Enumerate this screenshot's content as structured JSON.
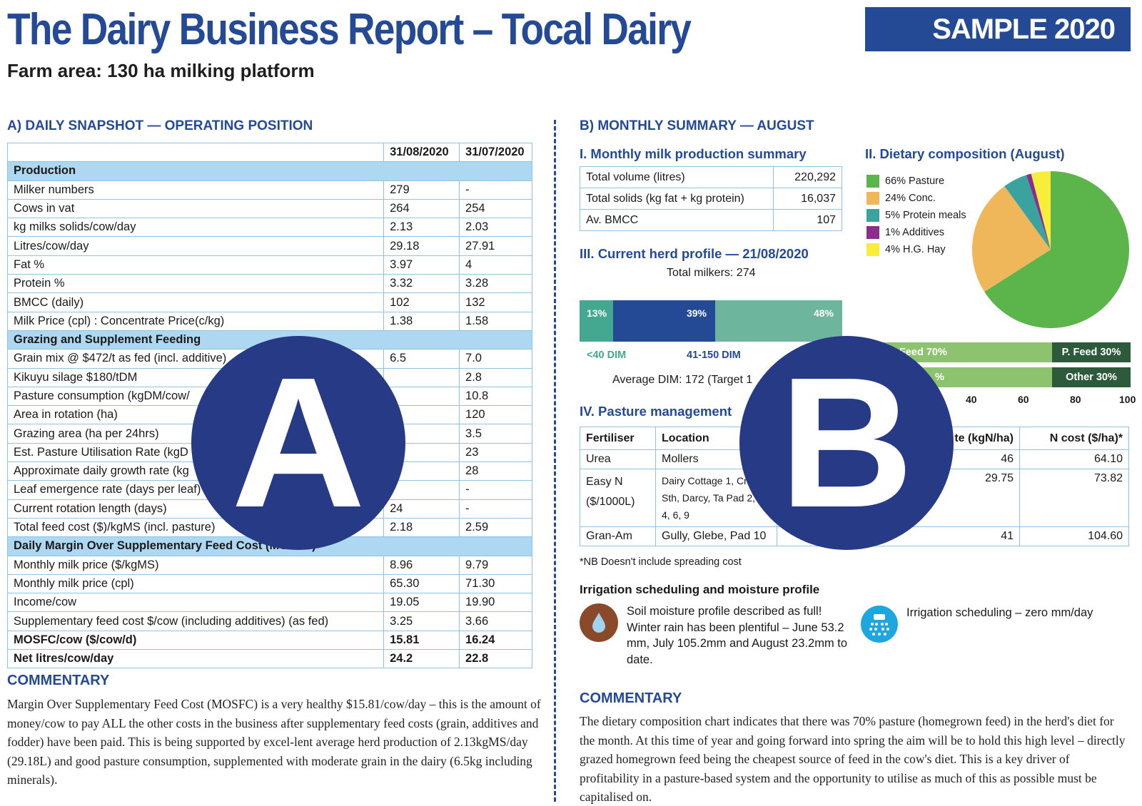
{
  "header": {
    "title": "The Dairy Business Report – Tocal Dairy",
    "subtitle": "Farm area: 130 ha milking platform",
    "badge": "SAMPLE 2020"
  },
  "section_a": {
    "heading": "A) DAILY SNAPSHOT — OPERATING POSITION",
    "col_headers": [
      "",
      "31/08/2020",
      "31/07/2020"
    ],
    "rows": [
      {
        "type": "section",
        "label": "Production"
      },
      {
        "type": "row",
        "label": "Milker numbers",
        "v1": "279",
        "v2": "-"
      },
      {
        "type": "row",
        "label": "Cows in vat",
        "v1": "264",
        "v2": "254"
      },
      {
        "type": "row",
        "label": "kg milks solids/cow/day",
        "v1": "2.13",
        "v2": "2.03"
      },
      {
        "type": "row",
        "label": "Litres/cow/day",
        "v1": "29.18",
        "v2": "27.91"
      },
      {
        "type": "row",
        "label": "Fat %",
        "v1": "3.97",
        "v2": "4"
      },
      {
        "type": "row",
        "label": "Protein %",
        "v1": "3.32",
        "v2": "3.28"
      },
      {
        "type": "row",
        "label": "BMCC (daily)",
        "v1": "102",
        "v2": "132"
      },
      {
        "type": "row",
        "label": "Milk Price (cpl) : Concentrate Price(c/kg)",
        "v1": "1.38",
        "v2": "1.58"
      },
      {
        "type": "section",
        "label": "Grazing and Supplement Feeding"
      },
      {
        "type": "row",
        "label": "Grain mix @ $472/t as fed (incl. additive)",
        "v1": "6.5",
        "v2": "7.0"
      },
      {
        "type": "row",
        "label": "Kikuyu silage $180/tDM",
        "v1": "",
        "v2": "2.8"
      },
      {
        "type": "row",
        "label": "Pasture consumption (kgDM/cow/",
        "v1": "",
        "v2": "10.8"
      },
      {
        "type": "row",
        "label": "Area in rotation (ha)",
        "v1": "",
        "v2": "120"
      },
      {
        "type": "row",
        "label": "Grazing area (ha per 24hrs)",
        "v1": "",
        "v2": "3.5"
      },
      {
        "type": "row",
        "label": "Est. Pasture Utilisation Rate (kgD",
        "v1": "",
        "v2": "23"
      },
      {
        "type": "row",
        "label": "Approximate daily growth rate (kg",
        "v1": "",
        "v2": "28"
      },
      {
        "type": "row",
        "label": "Leaf emergence rate (days per leaf)",
        "v1": "",
        "v2": "-"
      },
      {
        "type": "row",
        "label": "Current rotation length (days)",
        "v1": "24",
        "v2": "-"
      },
      {
        "type": "row",
        "label": "Total feed cost ($)/kgMS (incl. pasture)",
        "v1": "2.18",
        "v2": "2.59"
      },
      {
        "type": "section",
        "label": "Daily Margin Over Supplementary Feed Cost (MOSFC)"
      },
      {
        "type": "row",
        "label": "Monthly milk price ($/kgMS)",
        "v1": "8.96",
        "v2": "9.79"
      },
      {
        "type": "row",
        "label": "Monthly milk price (cpl)",
        "v1": "65.30",
        "v2": "71.30"
      },
      {
        "type": "row",
        "label": "Income/cow",
        "v1": "19.05",
        "v2": "19.90"
      },
      {
        "type": "row",
        "label": "Supplementary feed cost $/cow (including additives) (as fed)",
        "v1": "3.25",
        "v2": "3.66"
      },
      {
        "type": "bold",
        "label": "MOSFC/cow ($/cow/d)",
        "v1": "15.81",
        "v2": "16.24"
      },
      {
        "type": "bold",
        "label": "Net litres/cow/day",
        "v1": "24.2",
        "v2": "22.8"
      }
    ],
    "commentary_heading": "COMMENTARY",
    "commentary": "Margin Over Supplementary Feed Cost (MOSFC) is a very healthy $15.81/cow/day – this is the amount of money/cow to pay ALL the other costs in the business after supplementary feed costs (grain, additives and fodder) have been paid. This is being supported by excel-lent average herd production of 2.13kgMS/day (29.18L) and good pasture consumption, supplemented with moderate grain in the dairy (6.5kg including minerals)."
  },
  "section_b": {
    "heading": "B) MONTHLY SUMMARY — AUGUST",
    "milk_summary": {
      "heading": "I.   Monthly milk production summary",
      "rows": [
        {
          "label": "Total volume (litres)",
          "value": "220,292"
        },
        {
          "label": "Total solids (kg fat + kg protein)",
          "value": "16,037"
        },
        {
          "label": "Av. BMCC",
          "value": "107"
        }
      ]
    },
    "diet": {
      "heading": "II.  Dietary composition (August)",
      "legend": [
        "66% Pasture",
        "24% Conc.",
        "5% Protein meals",
        "1% Additives",
        "4% H.G. Hay"
      ]
    },
    "herd": {
      "heading": "III. Current herd profile — 21/08/2020",
      "total": "Total milkers: 274",
      "segments": [
        "13%",
        "39%",
        "48%"
      ],
      "dim_labels": [
        "<40 DIM",
        "41-150 DIM"
      ],
      "average": "Average DIM: 172 (Target 1"
    },
    "feed_bars": {
      "bar1_left": "Feed 70%",
      "bar1_right": "P. Feed 30%",
      "bar2_left": "%",
      "bar2_right": "Other 30%",
      "ticks": [
        "40",
        "60",
        "80",
        "100"
      ]
    },
    "pasture": {
      "heading": "IV. Pasture management",
      "headers": [
        "Fertiliser",
        "Location",
        "te (kgN/ha)",
        "N cost ($/ha)*"
      ],
      "rows": [
        {
          "fert": "Urea",
          "loc": "Mollers",
          "rate": "46",
          "cost": "64.10"
        },
        {
          "fert": "Easy N ($/1000L)",
          "loc": "Dairy Cottage 1, Crop Sth, Darcy, Ta Pad 2, 3, 4, 6, 9",
          "rate": "29.75",
          "cost": "73.82"
        },
        {
          "fert": "Gran-Am",
          "loc": "Gully, Glebe, Pad 10",
          "rate": "41",
          "cost": "104.60"
        }
      ],
      "note": "*NB Doesn't include spreading cost"
    },
    "irrigation": {
      "heading": "Irrigation scheduling and moisture profile",
      "soil_text": "Soil moisture profile described as full! Winter rain has been plentiful – June 53.2 mm, July 105.2mm and August 23.2mm to date.",
      "sched_text": "Irrigation scheduling – zero mm/day"
    },
    "commentary_heading": "COMMENTARY",
    "commentary": "The dietary composition chart indicates that there was 70% pasture (homegrown feed) in the herd's diet for the month. At this time of year and going forward into spring the aim will be to hold this high level – directly grazed homegrown feed being the cheapest source of feed in the cow's diet. This is a key driver of profitability in a pasture-based system and the opportunity to utilise as much of this as possible must be capitalised on."
  },
  "overlays": {
    "a": "A",
    "b": "B"
  },
  "chart_data": {
    "type": "pie",
    "title": "Dietary composition (August)",
    "categories": [
      "Pasture",
      "Conc.",
      "Protein meals",
      "Additives",
      "H.G. Hay"
    ],
    "values": [
      66,
      24,
      5,
      1,
      4
    ],
    "colors": [
      "#5cb54a",
      "#efb65a",
      "#3aa3a0",
      "#8d2c8c",
      "#f8ee3a"
    ]
  }
}
